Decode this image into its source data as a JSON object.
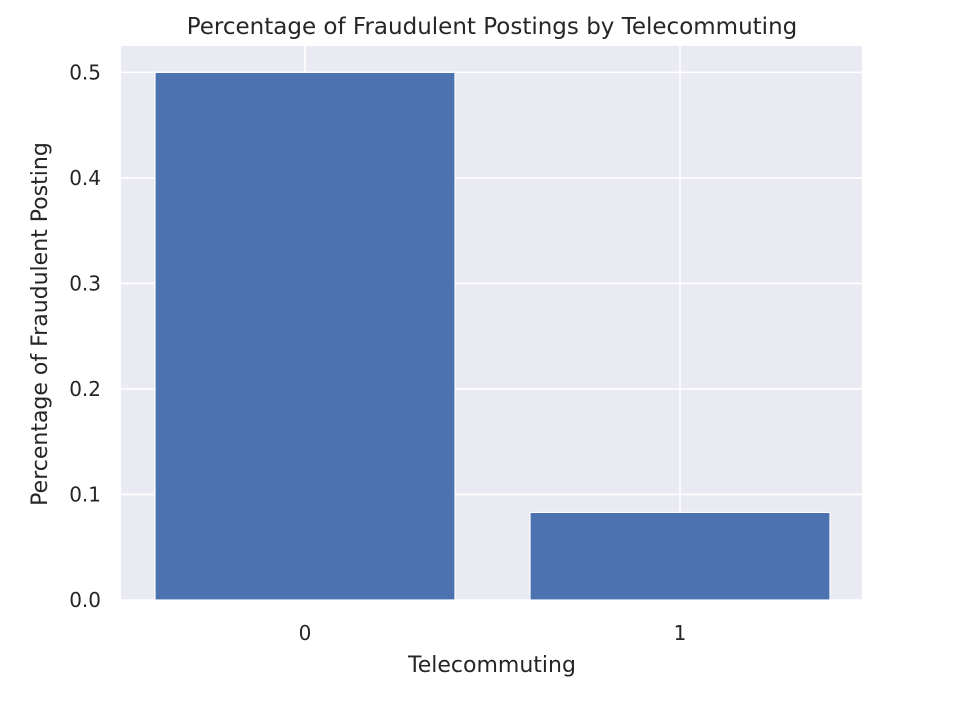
{
  "chart_data": {
    "type": "bar",
    "title": "Percentage of Fraudulent Postings by Telecommuting",
    "xlabel": "Telecommuting",
    "ylabel": "Percentage of Fraudulent Posting",
    "categories": [
      "0",
      "1"
    ],
    "values": [
      0.5,
      0.083
    ],
    "ylim": [
      0,
      0.525
    ],
    "yticks": [
      "0.0",
      "0.1",
      "0.2",
      "0.3",
      "0.4",
      "0.5"
    ],
    "grid": true,
    "legend": "none",
    "colors": {
      "bar": "#4c72b0",
      "background": "#eaeaf2",
      "grid": "#ffffff",
      "text": "#262626"
    }
  }
}
